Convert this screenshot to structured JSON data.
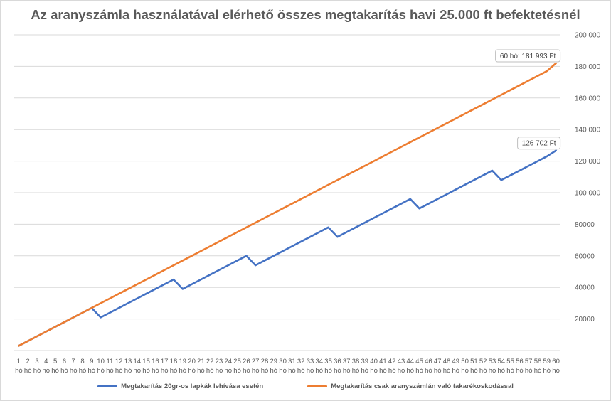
{
  "chart_data": {
    "type": "line",
    "title": "Az aranyszámla használatával elérhető összes megtakarítás havi 25.000 ft befektetésnél",
    "xlabel": "",
    "ylabel": "",
    "x_unit": "hó",
    "x": [
      1,
      2,
      3,
      4,
      5,
      6,
      7,
      8,
      9,
      10,
      11,
      12,
      13,
      14,
      15,
      16,
      17,
      18,
      19,
      20,
      21,
      22,
      23,
      24,
      25,
      26,
      27,
      28,
      29,
      30,
      31,
      32,
      33,
      34,
      35,
      36,
      37,
      38,
      39,
      40,
      41,
      42,
      43,
      44,
      45,
      46,
      47,
      48,
      49,
      50,
      51,
      52,
      53,
      54,
      55,
      56,
      57,
      58,
      59,
      60
    ],
    "ylim": [
      0,
      200000
    ],
    "yticks": [
      0,
      20000,
      40000,
      60000,
      80000,
      100000,
      120000,
      140000,
      160000,
      180000,
      200000
    ],
    "ytick_labels": [
      "-",
      "20000",
      "40000",
      "60000",
      "80000",
      "100 000",
      "120 000",
      "140 000",
      "160 000",
      "180 000",
      "200 000"
    ],
    "grid": true,
    "legend_position": "bottom",
    "series": [
      {
        "name": "Megtakarítás 20gr-os lapkák lehívása esetén",
        "color": "#4472c4",
        "values": [
          3000,
          6000,
          9000,
          12000,
          15000,
          18000,
          21000,
          24000,
          27000,
          21000,
          24000,
          27000,
          30000,
          33000,
          36000,
          39000,
          42000,
          45000,
          39000,
          42000,
          45000,
          48000,
          51000,
          54000,
          57000,
          60000,
          54000,
          57000,
          60000,
          63000,
          66000,
          69000,
          72000,
          75000,
          78000,
          72000,
          75000,
          78000,
          81000,
          84000,
          87000,
          90000,
          93000,
          96000,
          90000,
          93000,
          96000,
          99000,
          102000,
          105000,
          108000,
          111000,
          114000,
          108000,
          111000,
          114000,
          117000,
          120000,
          123000,
          126702
        ],
        "callout": "126 702 Ft"
      },
      {
        "name": "Megtakarítás  csak aranyszámlán való takarékoskodással",
        "color": "#ed7d31",
        "values": [
          3000,
          6000,
          9000,
          12000,
          15000,
          18000,
          21000,
          24000,
          27000,
          30000,
          33000,
          36000,
          39000,
          42000,
          45000,
          48000,
          51000,
          54000,
          57000,
          60000,
          63000,
          66000,
          69000,
          72000,
          75000,
          78000,
          81000,
          84000,
          87000,
          90000,
          93000,
          96000,
          99000,
          102000,
          105000,
          108000,
          111000,
          114000,
          117000,
          120000,
          123000,
          126000,
          129000,
          132000,
          135000,
          138000,
          141000,
          144000,
          147000,
          150000,
          153000,
          156000,
          159000,
          162000,
          165000,
          168000,
          171000,
          174000,
          177000,
          181993
        ],
        "callout": "60 hó;  181 993 Ft"
      }
    ]
  }
}
